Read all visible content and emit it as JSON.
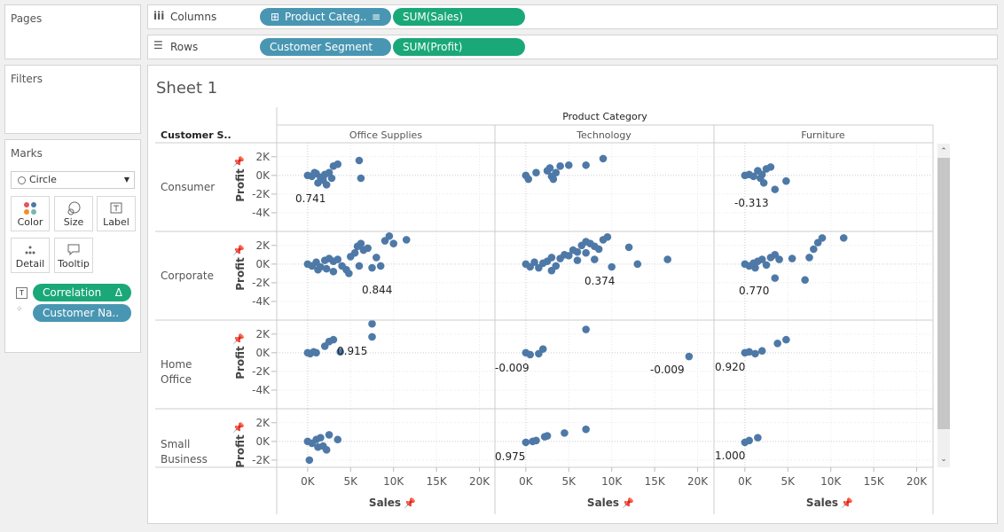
{
  "sidebar": {
    "pages": "Pages",
    "filters": "Filters",
    "marks": "Marks",
    "mark_type": "Circle",
    "cards": [
      "Color",
      "Size",
      "Label",
      "Detail",
      "Tooltip"
    ],
    "pills": [
      "Correlation",
      "Customer Na.."
    ]
  },
  "shelves": {
    "columns_label": "Columns",
    "columns": [
      "Product Categ..",
      "SUM(Sales)"
    ],
    "rows_label": "Rows",
    "rows": [
      "Customer Segment",
      "SUM(Profit)"
    ]
  },
  "chart_data": {
    "type": "scatter",
    "title": "Sheet 1",
    "column_field": "Product Category",
    "row_field": "Customer S..",
    "columns": [
      "Office Supplies",
      "Technology",
      "Furniture"
    ],
    "rows": [
      "Consumer",
      "Corporate",
      "Home Office",
      "Small Business"
    ],
    "x_label": "Sales",
    "y_label": "Profit",
    "color": "#4e79a7",
    "grid": true,
    "xlim": [
      -3600,
      21800
    ],
    "xticks": [
      {
        "value": 0,
        "label": "0K"
      },
      {
        "value": 5000,
        "label": "5K"
      },
      {
        "value": 10000,
        "label": "10K"
      },
      {
        "value": 15000,
        "label": "15K"
      },
      {
        "value": 20000,
        "label": "20K"
      }
    ],
    "ylim": [
      -6000,
      3500
    ],
    "yticks": [
      {
        "value": 2000,
        "label": "2K"
      },
      {
        "value": 0,
        "label": "0K"
      },
      {
        "value": -2000,
        "label": "-2K"
      },
      {
        "value": -4000,
        "label": "-4K"
      }
    ],
    "panels": [
      [
        {
          "x": [
            0,
            500,
            1000,
            1500,
            2000,
            2500,
            3000,
            1800,
            3500,
            1200,
            6000,
            6200,
            2200,
            800,
            2800
          ],
          "y": [
            0,
            -100,
            200,
            -200,
            100,
            300,
            1000,
            -500,
            1200,
            -800,
            1600,
            -300,
            -1000,
            300,
            -300
          ],
          "labels": [
            "0.741"
          ]
        },
        {
          "x": [
            0,
            300,
            1200,
            2500,
            3000,
            2800,
            3500,
            4000,
            5000,
            7000,
            9000,
            3200
          ],
          "y": [
            0,
            -400,
            300,
            500,
            -100,
            800,
            300,
            1000,
            1100,
            1100,
            1800,
            -400
          ],
          "labels": []
        },
        {
          "x": [
            0,
            500,
            1000,
            1500,
            2000,
            2500,
            3000,
            3500,
            4800,
            1800,
            2200
          ],
          "y": [
            0,
            100,
            -100,
            500,
            100,
            700,
            900,
            -1500,
            -600,
            -300,
            -800
          ],
          "labels": [
            "-0.313"
          ]
        }
      ],
      [
        {
          "x": [
            0,
            500,
            1000,
            1500,
            2000,
            2500,
            3000,
            3500,
            4000,
            5000,
            5500,
            5800,
            6200,
            6500,
            7000,
            4500,
            6000,
            7500,
            8000,
            9000,
            9500,
            10000,
            11500,
            3000,
            2200,
            1200,
            4800,
            8500
          ],
          "y": [
            0,
            -200,
            200,
            -300,
            400,
            600,
            300,
            500,
            -200,
            800,
            1200,
            1900,
            2200,
            1500,
            1700,
            -600,
            -200,
            -400,
            700,
            2500,
            3000,
            2200,
            2600,
            -800,
            -500,
            -600,
            -1000,
            -200
          ],
          "labels": [
            "0.844"
          ]
        },
        {
          "x": [
            0,
            500,
            1000,
            1500,
            2000,
            2500,
            3000,
            3500,
            4000,
            4500,
            5000,
            5500,
            6000,
            6500,
            7000,
            7500,
            8000,
            8500,
            9000,
            9500,
            10000,
            12000,
            13000,
            16500,
            6000,
            3000,
            8000,
            7000
          ],
          "y": [
            0,
            -300,
            200,
            -400,
            100,
            300,
            700,
            -200,
            600,
            1000,
            900,
            1500,
            1300,
            2000,
            2400,
            2200,
            1900,
            1600,
            2600,
            2900,
            -300,
            1800,
            0,
            500,
            400,
            -700,
            500,
            1200
          ],
          "labels": [
            "0.374"
          ]
        },
        {
          "x": [
            0,
            500,
            1000,
            1500,
            2000,
            2500,
            3000,
            3500,
            4000,
            3500,
            5500,
            7500,
            8000,
            8500,
            9000,
            11500,
            7000,
            1200
          ],
          "y": [
            0,
            -200,
            100,
            300,
            500,
            -100,
            700,
            1000,
            500,
            -1500,
            600,
            700,
            1600,
            2300,
            2800,
            2800,
            -1700,
            -400
          ],
          "labels": [
            "0.770"
          ]
        }
      ],
      [
        {
          "x": [
            0,
            300,
            700,
            1000,
            2000,
            2500,
            3000,
            7500,
            7500,
            3800
          ],
          "y": [
            0,
            -100,
            100,
            0,
            700,
            1200,
            1400,
            3100,
            1700,
            100
          ],
          "labels": [
            "0.915"
          ]
        },
        {
          "x": [
            0,
            500,
            1500,
            2000,
            7000,
            19000
          ],
          "y": [
            0,
            -200,
            -100,
            400,
            2500,
            -400
          ],
          "labels": [
            "-0.009",
            "-0.009"
          ]
        },
        {
          "x": [
            0,
            500,
            1200,
            2000,
            3800,
            4800
          ],
          "y": [
            0,
            100,
            -100,
            200,
            1000,
            1400
          ],
          "labels": [
            "0.920"
          ]
        }
      ],
      [
        {
          "x": [
            0,
            500,
            1000,
            1500,
            1800,
            2200,
            2500,
            3500,
            200,
            1200
          ],
          "y": [
            0,
            -200,
            200,
            400,
            -500,
            -900,
            700,
            200,
            -2000,
            -600
          ],
          "labels": []
        },
        {
          "x": [
            0,
            800,
            1200,
            2200,
            2500,
            4500,
            7000
          ],
          "y": [
            -100,
            0,
            100,
            500,
            600,
            900,
            1300
          ],
          "labels": [
            "0.975"
          ]
        },
        {
          "x": [
            0,
            500,
            1500
          ],
          "y": [
            -100,
            100,
            400
          ],
          "labels": [
            "1.000"
          ]
        }
      ]
    ]
  }
}
